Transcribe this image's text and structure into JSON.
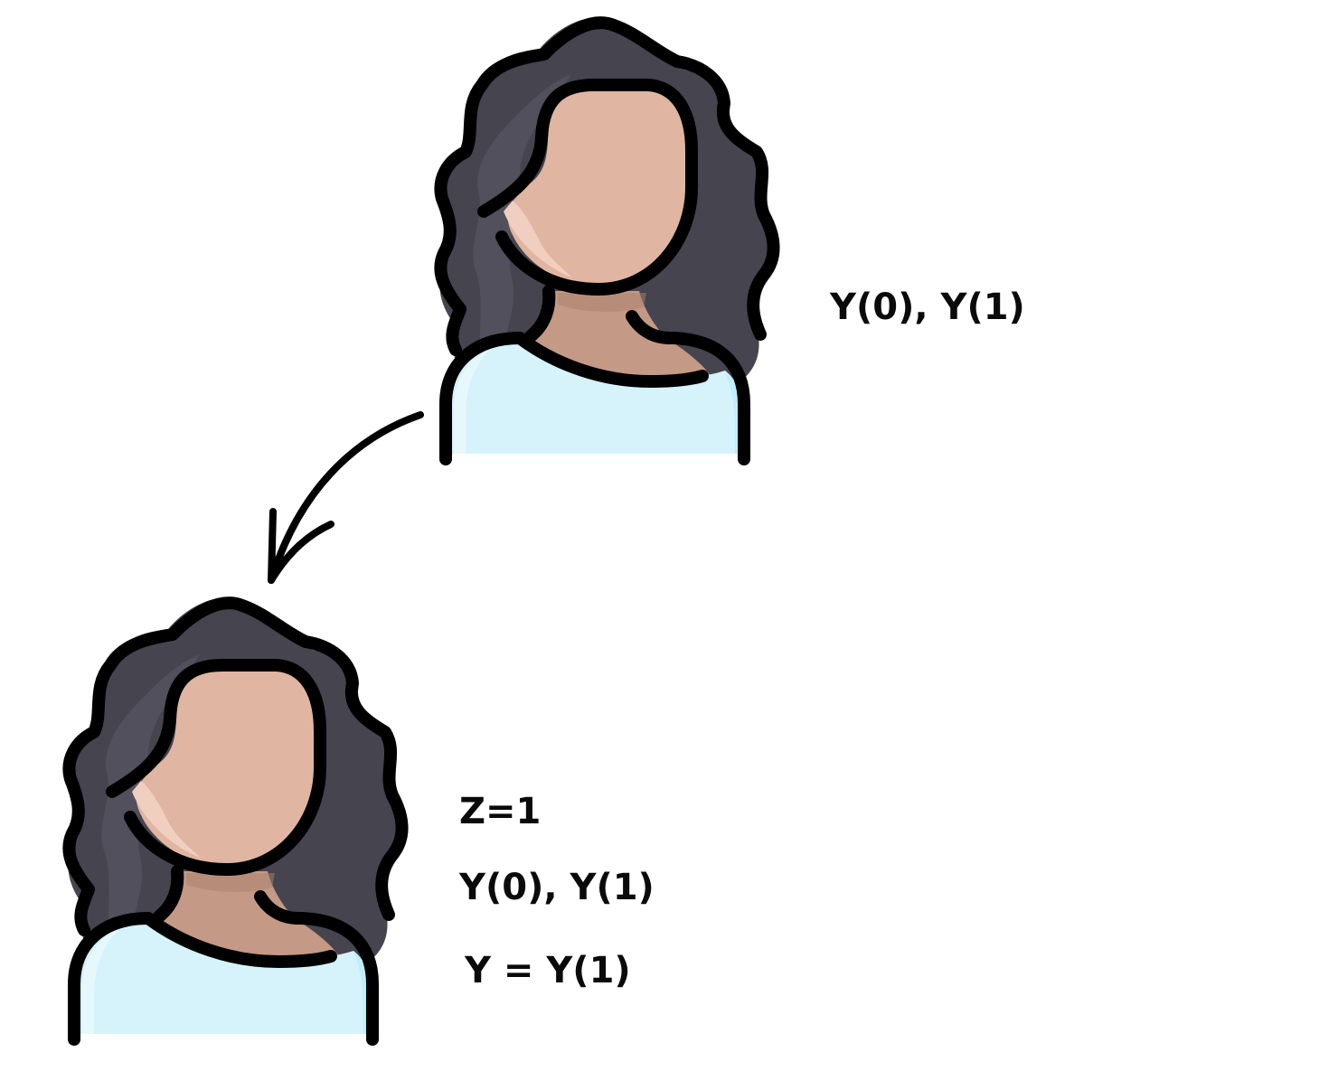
{
  "persons": [
    {
      "name": "unit-before",
      "labels": [
        "Y(0), Y(1)"
      ]
    },
    {
      "name": "unit-after",
      "labels": [
        "Z=1",
        "Y(0), Y(1)",
        "Y = Y(1)"
      ]
    }
  ],
  "arrow": {
    "from": "unit-before",
    "to": "unit-after"
  },
  "colors": {
    "hair": "#45444f",
    "hair_highlight": "#55545f",
    "skin": "#e0b6a2",
    "skin_highlight": "#f0cfc0",
    "neck": "#c49985",
    "shirt": "#d6f3fb",
    "shirt_highlight": "#bfeefc",
    "outline": "#000000",
    "text": "#0a0a0a",
    "background": "#ffffff"
  }
}
